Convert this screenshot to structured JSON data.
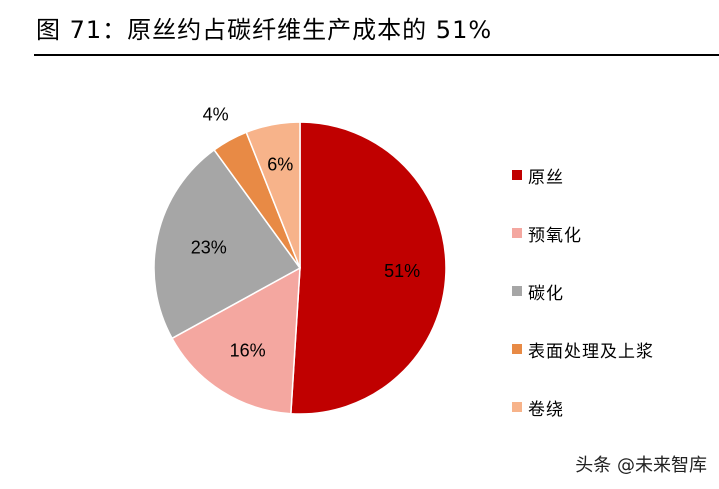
{
  "title": "图 71：原丝约占碳纤维生产成本的 51%",
  "chart_data": {
    "type": "pie",
    "title": "",
    "legend_position": "right",
    "slices": [
      {
        "label": "原丝",
        "value": 51,
        "display": "51%",
        "color": "#C00000"
      },
      {
        "label": "预氧化",
        "value": 16,
        "display": "16%",
        "color": "#F4A7A0"
      },
      {
        "label": "碳化",
        "value": 23,
        "display": "23%",
        "color": "#A6A6A6"
      },
      {
        "label": "表面处理及上浆",
        "value": 4,
        "display": "4%",
        "color": "#E88A45"
      },
      {
        "label": "卷绕",
        "value": 6,
        "display": "6%",
        "color": "#F7B38A"
      }
    ]
  },
  "watermark": "头条 @未来智库"
}
